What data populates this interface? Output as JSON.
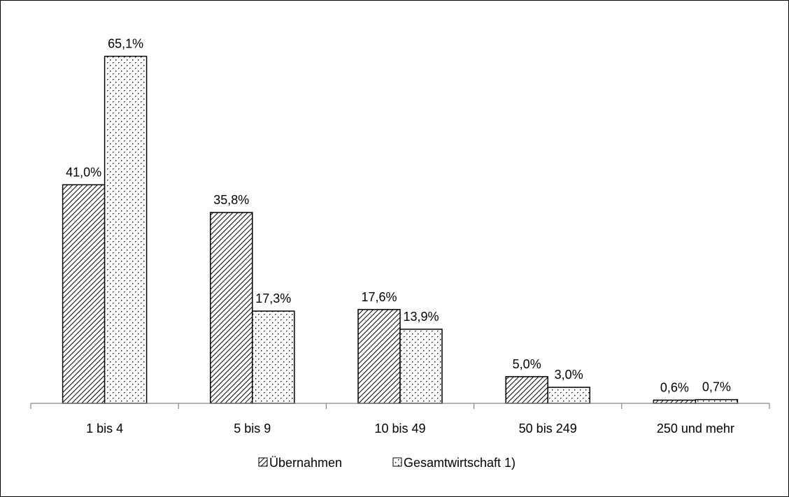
{
  "chart_data": {
    "type": "bar",
    "title": "",
    "xlabel": "",
    "ylabel": "",
    "ylim": [
      0,
      70
    ],
    "grid": false,
    "legend_position": "bottom",
    "categories": [
      "1 bis 4",
      "5 bis 9",
      "10 bis 49",
      "50 bis 249",
      "250 und mehr"
    ],
    "series": [
      {
        "name": "Übernahmen",
        "values": [
          41.0,
          35.8,
          17.6,
          5.0,
          0.6
        ],
        "labels": [
          "41,0%",
          "35,8%",
          "17,6%",
          "5,0%",
          "0,6%"
        ],
        "pattern": "diagonal-hatch"
      },
      {
        "name": "Gesamtwirtschaft 1)",
        "values": [
          65.1,
          17.3,
          13.9,
          3.0,
          0.7
        ],
        "labels": [
          "65,1%",
          "17,3%",
          "13,9%",
          "3,0%",
          "0,7%"
        ],
        "pattern": "dotted"
      }
    ],
    "colors": {
      "outline": "#000000",
      "fill": "#ffffff",
      "pattern": "#000000"
    }
  }
}
